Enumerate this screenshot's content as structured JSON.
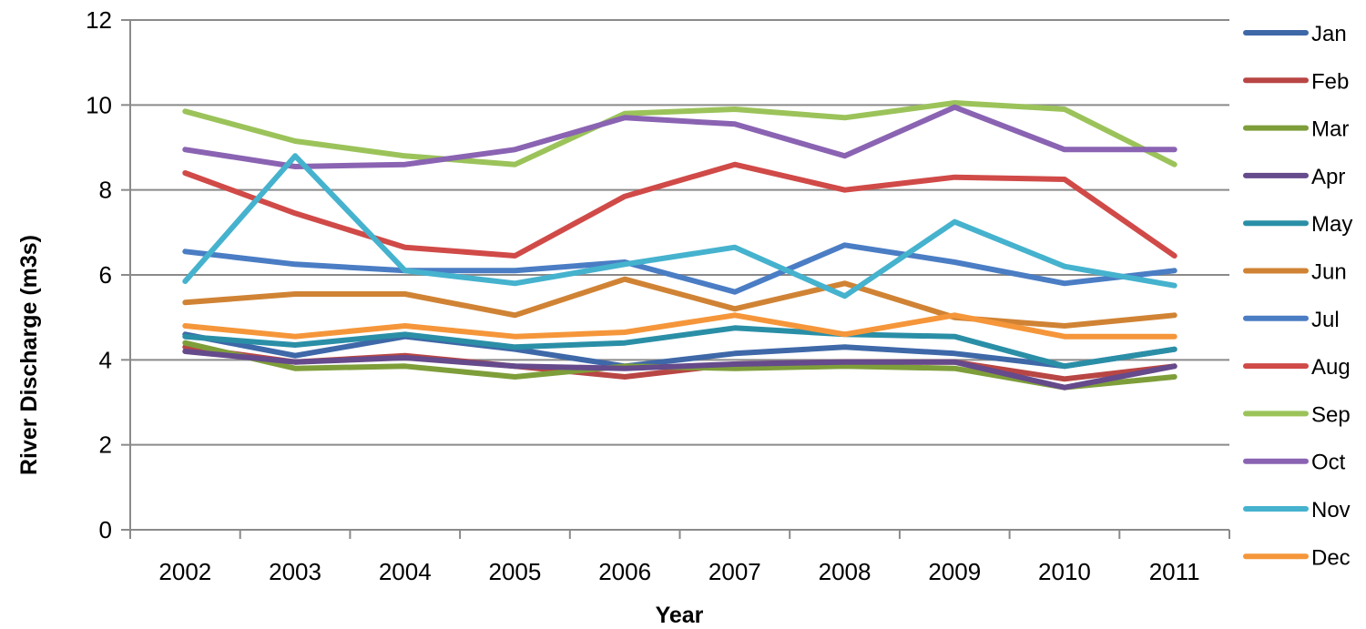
{
  "chart_data": {
    "type": "line",
    "title": "",
    "xlabel": "Year",
    "ylabel": "River Discharge (m3s)",
    "ylim": [
      0,
      12
    ],
    "yticks": [
      0,
      2,
      4,
      6,
      8,
      10,
      12
    ],
    "grid": true,
    "legend_position": "right",
    "categories": [
      "2002",
      "2003",
      "2004",
      "2005",
      "2006",
      "2007",
      "2008",
      "2009",
      "2010",
      "2011"
    ],
    "series": [
      {
        "name": "Jan",
        "color": "#3E68A8",
        "values": [
          4.6,
          4.1,
          4.55,
          4.25,
          3.85,
          4.15,
          4.3,
          4.15,
          3.85,
          4.25
        ]
      },
      {
        "name": "Feb",
        "color": "#B84644",
        "values": [
          4.3,
          3.95,
          4.1,
          3.85,
          3.6,
          3.9,
          3.95,
          3.95,
          3.55,
          3.85
        ]
      },
      {
        "name": "Mar",
        "color": "#7E9E3A",
        "values": [
          4.4,
          3.8,
          3.85,
          3.6,
          3.85,
          3.8,
          3.85,
          3.8,
          3.35,
          3.6
        ]
      },
      {
        "name": "Apr",
        "color": "#654A8C",
        "values": [
          4.2,
          3.95,
          4.05,
          3.85,
          3.8,
          3.9,
          3.95,
          3.95,
          3.35,
          3.85
        ]
      },
      {
        "name": "May",
        "color": "#2A8FA6",
        "values": [
          4.55,
          4.35,
          4.6,
          4.3,
          4.4,
          4.75,
          4.6,
          4.55,
          3.85,
          4.25
        ]
      },
      {
        "name": "Jun",
        "color": "#D08334",
        "values": [
          5.35,
          5.55,
          5.55,
          5.05,
          5.9,
          5.2,
          5.8,
          5.0,
          4.8,
          5.05
        ]
      },
      {
        "name": "Jul",
        "color": "#4A7DC4",
        "values": [
          6.55,
          6.25,
          6.1,
          6.1,
          6.3,
          5.6,
          6.7,
          6.3,
          5.8,
          6.1
        ]
      },
      {
        "name": "Aug",
        "color": "#D04A48",
        "values": [
          8.4,
          7.45,
          6.65,
          6.45,
          7.85,
          8.6,
          8.0,
          8.3,
          8.25,
          6.45
        ]
      },
      {
        "name": "Sep",
        "color": "#9BC35A",
        "values": [
          9.85,
          9.15,
          8.8,
          8.6,
          9.8,
          9.9,
          9.7,
          10.05,
          9.9,
          8.6
        ]
      },
      {
        "name": "Oct",
        "color": "#8A63B2",
        "values": [
          8.95,
          8.55,
          8.6,
          8.95,
          9.7,
          9.55,
          8.8,
          9.95,
          8.95,
          8.95
        ]
      },
      {
        "name": "Nov",
        "color": "#45B2CE",
        "values": [
          5.85,
          8.8,
          6.1,
          5.8,
          6.25,
          6.65,
          5.5,
          7.25,
          6.2,
          5.75
        ]
      },
      {
        "name": "Dec",
        "color": "#F5963A",
        "values": [
          4.8,
          4.55,
          4.8,
          4.55,
          4.65,
          5.05,
          4.6,
          5.05,
          4.55,
          4.55
        ]
      }
    ]
  }
}
